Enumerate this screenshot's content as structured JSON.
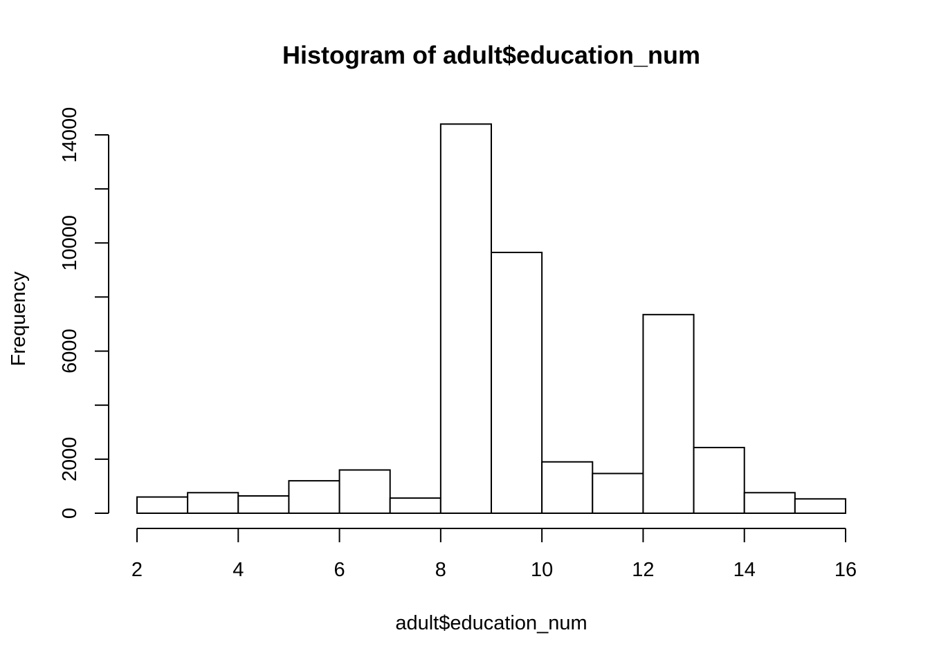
{
  "chart_data": {
    "type": "bar",
    "title": "Histogram of adult$education_num",
    "xlabel": "adult$education_num",
    "ylabel": "Frequency",
    "xlim": [
      2,
      16
    ],
    "ylim": [
      0,
      14000
    ],
    "x_ticks": [
      2,
      4,
      6,
      8,
      10,
      12,
      14,
      16
    ],
    "y_ticks": [
      0,
      2000,
      4000,
      6000,
      8000,
      10000,
      12000,
      14000
    ],
    "y_tick_labels": [
      "0",
      "2000",
      "",
      "6000",
      "",
      "10000",
      "",
      "14000"
    ],
    "bins": [
      {
        "x0": 2,
        "x1": 3,
        "count": 600
      },
      {
        "x0": 3,
        "x1": 4,
        "count": 760
      },
      {
        "x0": 4,
        "x1": 5,
        "count": 640
      },
      {
        "x0": 5,
        "x1": 6,
        "count": 1200
      },
      {
        "x0": 6,
        "x1": 7,
        "count": 1600
      },
      {
        "x0": 7,
        "x1": 8,
        "count": 560
      },
      {
        "x0": 8,
        "x1": 9,
        "count": 14400
      },
      {
        "x0": 9,
        "x1": 10,
        "count": 9650
      },
      {
        "x0": 10,
        "x1": 11,
        "count": 1900
      },
      {
        "x0": 11,
        "x1": 12,
        "count": 1470
      },
      {
        "x0": 12,
        "x1": 13,
        "count": 7350
      },
      {
        "x0": 13,
        "x1": 14,
        "count": 2430
      },
      {
        "x0": 14,
        "x1": 15,
        "count": 760
      },
      {
        "x0": 15,
        "x1": 16,
        "count": 530
      }
    ],
    "grid": false,
    "colors": {
      "bar_fill": "#ffffff",
      "bar_stroke": "#000000"
    }
  }
}
